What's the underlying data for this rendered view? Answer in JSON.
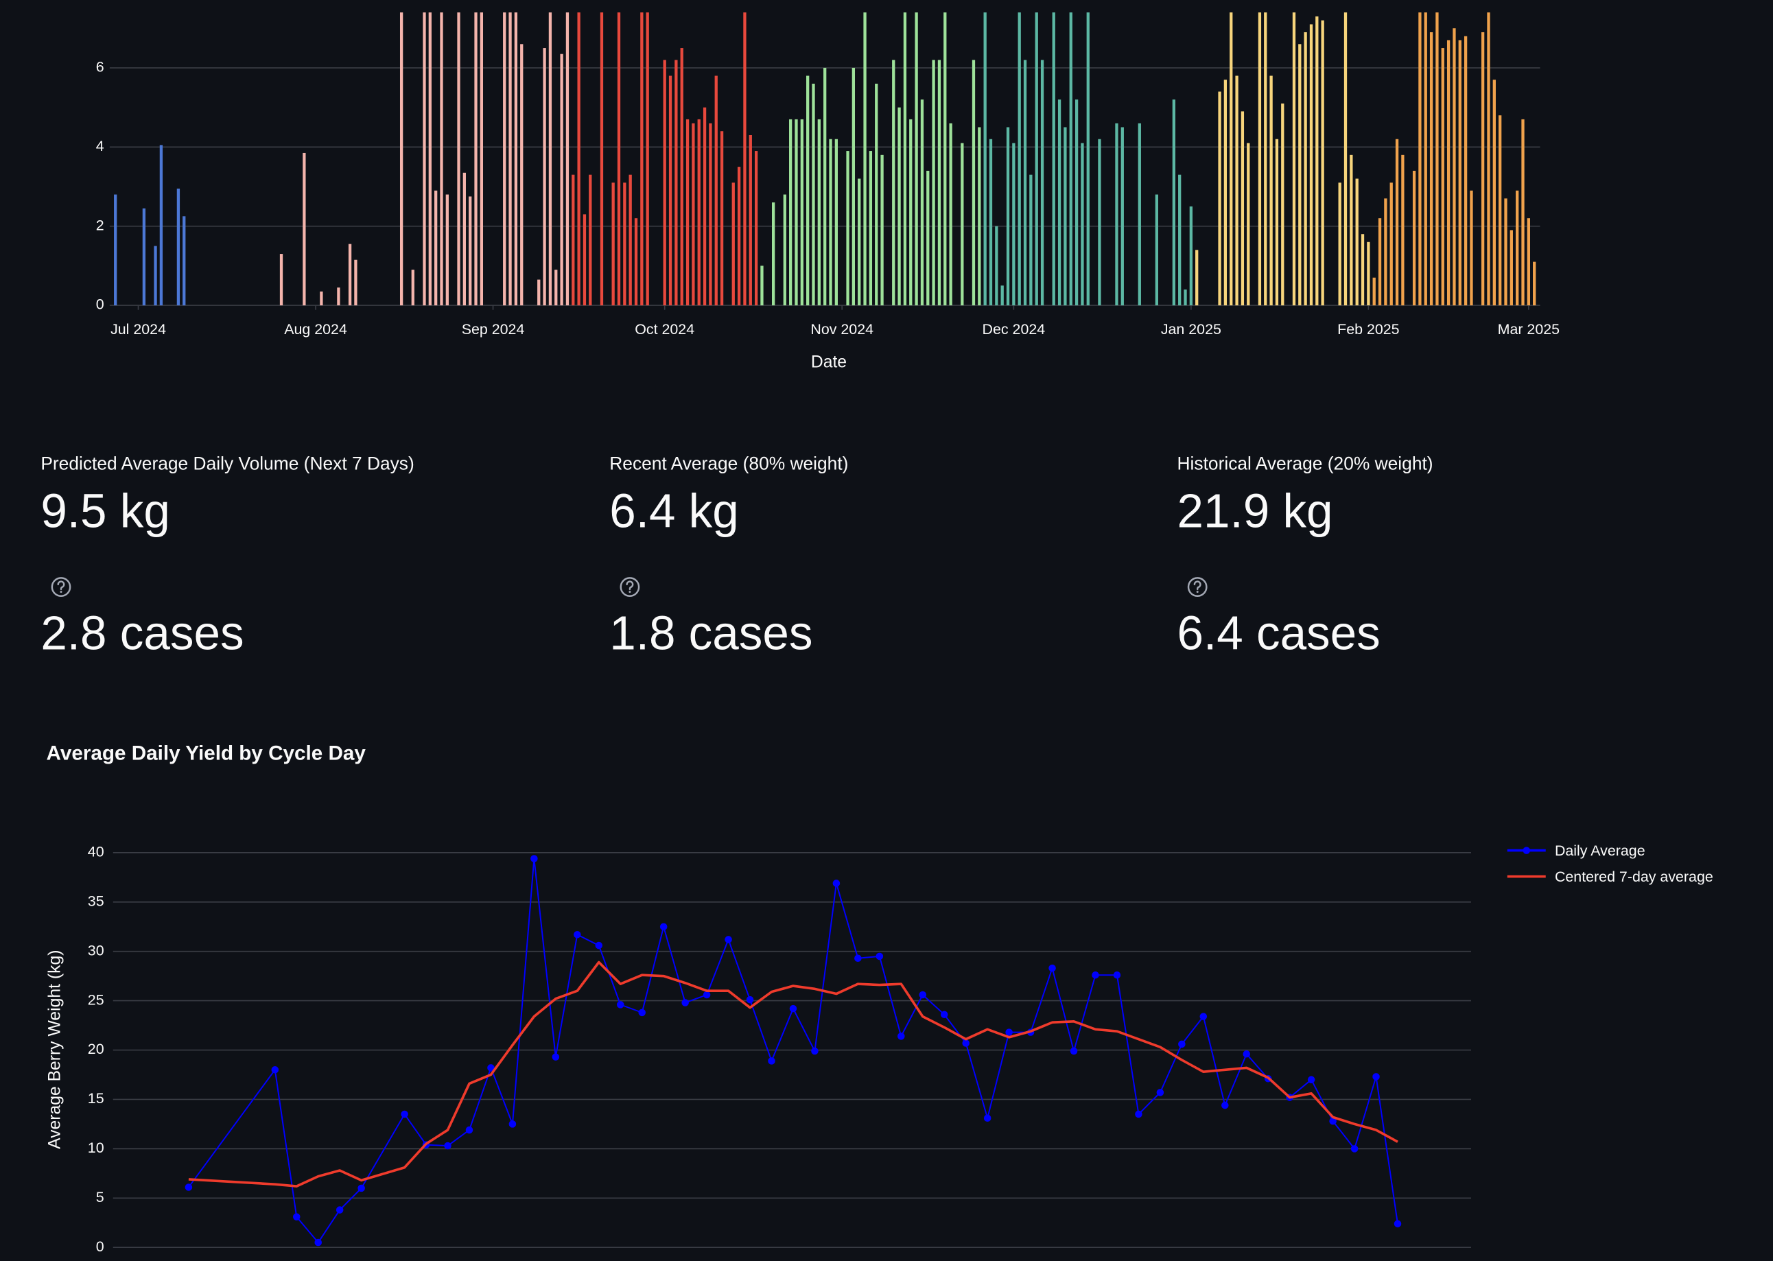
{
  "chart_data": [
    {
      "type": "bar",
      "x_label": "Date",
      "xlim": [
        "2024-06-26",
        "2025-03-03"
      ],
      "xticks": [
        {
          "value": "2024-07-01",
          "label": "Jul 2024"
        },
        {
          "value": "2024-08-01",
          "label": "Aug 2024"
        },
        {
          "value": "2024-09-01",
          "label": "Sep 2024"
        },
        {
          "value": "2024-10-01",
          "label": "Oct 2024"
        },
        {
          "value": "2024-11-01",
          "label": "Nov 2024"
        },
        {
          "value": "2024-12-01",
          "label": "Dec 2024"
        },
        {
          "value": "2025-01-01",
          "label": "Jan 2025"
        },
        {
          "value": "2025-02-01",
          "label": "Feb 2025"
        },
        {
          "value": "2025-03-01",
          "label": "Mar 2025"
        }
      ],
      "ylim": [
        0,
        7.4
      ],
      "yticks": [
        0,
        2,
        4,
        6
      ],
      "grid": true,
      "series": [
        {
          "color": "#4c78d6",
          "x": [
            "2024-06-27",
            "2024-07-02",
            "2024-07-04",
            "2024-07-05",
            "2024-07-08",
            "2024-07-09"
          ],
          "values": [
            2.8,
            2.45,
            1.5,
            4.05,
            2.95,
            2.25
          ]
        },
        {
          "color": "#f4b4ac",
          "x": [
            "2024-07-26",
            "2024-07-30",
            "2024-08-02",
            "2024-08-05",
            "2024-08-07",
            "2024-08-08",
            "2024-08-16",
            "2024-08-18",
            "2024-08-20",
            "2024-08-21",
            "2024-08-22",
            "2024-08-23",
            "2024-08-24",
            "2024-08-26",
            "2024-08-27",
            "2024-08-28",
            "2024-08-29",
            "2024-08-30",
            "2024-09-03",
            "2024-09-04",
            "2024-09-05",
            "2024-09-06",
            "2024-09-09",
            "2024-09-10",
            "2024-09-11",
            "2024-09-12",
            "2024-09-13",
            "2024-09-14"
          ],
          "values": [
            1.3,
            3.85,
            0.35,
            0.45,
            1.55,
            1.15,
            7.4,
            0.9,
            7.4,
            7.4,
            2.9,
            7.4,
            2.8,
            7.4,
            3.35,
            2.75,
            7.4,
            7.4,
            7.4,
            7.4,
            7.4,
            6.6,
            0.65,
            6.5,
            7.4,
            0.9,
            6.35,
            7.4
          ]
        },
        {
          "color": "#e8493d",
          "x": [
            "2024-09-15",
            "2024-09-16",
            "2024-09-17",
            "2024-09-18",
            "2024-09-20",
            "2024-09-22",
            "2024-09-23",
            "2024-09-24",
            "2024-09-25",
            "2024-09-26",
            "2024-09-27",
            "2024-09-28",
            "2024-10-01",
            "2024-10-02",
            "2024-10-03",
            "2024-10-04",
            "2024-10-05",
            "2024-10-06",
            "2024-10-07",
            "2024-10-08",
            "2024-10-09",
            "2024-10-10",
            "2024-10-11",
            "2024-10-13",
            "2024-10-14",
            "2024-10-15",
            "2024-10-16",
            "2024-10-17"
          ],
          "values": [
            3.3,
            7.4,
            2.3,
            3.3,
            7.4,
            3.1,
            7.4,
            3.1,
            3.3,
            2.2,
            7.4,
            7.4,
            6.2,
            5.8,
            6.2,
            6.5,
            4.7,
            4.6,
            4.7,
            5.0,
            4.6,
            5.8,
            4.4,
            3.1,
            3.5,
            7.4,
            4.3,
            3.9
          ]
        },
        {
          "color": "#9ee29a",
          "x": [
            "2024-10-18",
            "2024-10-20",
            "2024-10-22",
            "2024-10-23",
            "2024-10-24",
            "2024-10-25",
            "2024-10-26",
            "2024-10-27",
            "2024-10-28",
            "2024-10-29",
            "2024-10-30",
            "2024-10-31",
            "2024-11-02",
            "2024-11-03",
            "2024-11-04",
            "2024-11-05",
            "2024-11-06",
            "2024-11-07",
            "2024-11-08",
            "2024-11-10",
            "2024-11-11",
            "2024-11-12",
            "2024-11-13",
            "2024-11-14",
            "2024-11-15",
            "2024-11-16",
            "2024-11-17",
            "2024-11-18",
            "2024-11-19",
            "2024-11-20",
            "2024-11-22",
            "2024-11-24",
            "2024-11-25"
          ],
          "values": [
            1.0,
            2.6,
            2.8,
            4.7,
            4.7,
            4.7,
            5.8,
            5.6,
            4.7,
            6.0,
            4.2,
            4.2,
            3.9,
            6.0,
            3.2,
            7.4,
            3.9,
            5.6,
            3.8,
            6.2,
            5.0,
            7.4,
            4.7,
            7.4,
            5.2,
            3.4,
            6.2,
            6.2,
            7.4,
            4.6,
            4.1,
            6.2,
            4.5
          ]
        },
        {
          "color": "#5cb8a4",
          "x": [
            "2024-11-26",
            "2024-11-27",
            "2024-11-28",
            "2024-11-29",
            "2024-11-30",
            "2024-12-01",
            "2024-12-02",
            "2024-12-03",
            "2024-12-04",
            "2024-12-05",
            "2024-12-06",
            "2024-12-08",
            "2024-12-09",
            "2024-12-10",
            "2024-12-11",
            "2024-12-12",
            "2024-12-13",
            "2024-12-14",
            "2024-12-16",
            "2024-12-19",
            "2024-12-20",
            "2024-12-23",
            "2024-12-26",
            "2024-12-29",
            "2024-12-30",
            "2024-12-31",
            "2025-01-01"
          ],
          "values": [
            7.4,
            4.2,
            2.0,
            0.5,
            4.5,
            4.1,
            7.4,
            6.2,
            3.3,
            7.4,
            6.2,
            7.4,
            5.2,
            4.5,
            7.4,
            5.2,
            4.1,
            7.4,
            4.2,
            4.6,
            4.5,
            4.6,
            2.8,
            5.2,
            3.3,
            0.4,
            2.5
          ]
        },
        {
          "color": "#f7d57c",
          "x": [
            "2025-01-02",
            "2025-01-06",
            "2025-01-07",
            "2025-01-08",
            "2025-01-09",
            "2025-01-10",
            "2025-01-11",
            "2025-01-13",
            "2025-01-14",
            "2025-01-15",
            "2025-01-16",
            "2025-01-17",
            "2025-01-19",
            "2025-01-20",
            "2025-01-21",
            "2025-01-22",
            "2025-01-23",
            "2025-01-24",
            "2025-01-27",
            "2025-01-28",
            "2025-01-29",
            "2025-01-30",
            "2025-01-31",
            "2025-02-01"
          ],
          "values": [
            1.4,
            5.4,
            5.7,
            7.4,
            5.8,
            4.9,
            4.1,
            7.4,
            7.4,
            5.8,
            4.2,
            5.1,
            7.4,
            6.6,
            6.9,
            7.1,
            7.3,
            7.2,
            3.1,
            7.4,
            3.8,
            3.2,
            1.8,
            1.6
          ]
        },
        {
          "color": "#f0a24c",
          "x": [
            "2025-02-02",
            "2025-02-03",
            "2025-02-04",
            "2025-02-05",
            "2025-02-06",
            "2025-02-07",
            "2025-02-09",
            "2025-02-10",
            "2025-02-11",
            "2025-02-12",
            "2025-02-13",
            "2025-02-14",
            "2025-02-15",
            "2025-02-16",
            "2025-02-17",
            "2025-02-18",
            "2025-02-19",
            "2025-02-21",
            "2025-02-22",
            "2025-02-23",
            "2025-02-24",
            "2025-02-25",
            "2025-02-26",
            "2025-02-27",
            "2025-02-28",
            "2025-03-01",
            "2025-03-02"
          ],
          "values": [
            0.7,
            2.2,
            2.7,
            3.1,
            4.2,
            3.8,
            3.4,
            7.4,
            7.4,
            6.9,
            7.4,
            6.5,
            6.7,
            7.0,
            6.7,
            6.8,
            2.9,
            6.9,
            7.4,
            5.7,
            4.8,
            2.7,
            1.9,
            2.9,
            4.7,
            2.2,
            1.1
          ]
        }
      ]
    },
    {
      "type": "line",
      "title": "Average Daily Yield by Cycle Day",
      "y_label": "Average Berry Weight (kg)",
      "x": [
        1,
        5,
        6,
        7,
        8,
        9,
        11,
        12,
        13,
        14,
        15,
        16,
        17,
        18,
        19,
        20,
        21,
        22,
        23,
        24,
        25,
        26,
        27,
        28,
        29,
        30,
        31,
        32,
        33,
        34,
        35,
        36,
        37,
        38,
        39,
        40,
        41,
        42,
        43,
        44,
        45,
        46,
        47,
        48,
        49,
        50,
        51,
        52,
        53,
        54,
        55,
        56,
        57
      ],
      "xlim": [
        -2.5,
        60.4
      ],
      "ylim": [
        0,
        42
      ],
      "yticks": [
        0,
        5,
        10,
        15,
        20,
        25,
        30,
        35,
        40
      ],
      "grid": true,
      "legend": "top-right",
      "series": [
        {
          "name": "Daily Average",
          "color": "#0000ff",
          "markers": true,
          "values": [
            6.1,
            18.0,
            3.1,
            0.5,
            3.8,
            6.0,
            13.5,
            10.4,
            10.3,
            11.9,
            18.2,
            12.5,
            39.4,
            19.3,
            31.7,
            30.6,
            24.6,
            23.8,
            32.5,
            24.8,
            25.6,
            31.2,
            25.1,
            18.9,
            24.2,
            19.9,
            36.9,
            29.3,
            29.5,
            21.4,
            25.6,
            23.6,
            20.7,
            13.1,
            21.8,
            21.8,
            28.3,
            19.9,
            27.6,
            27.6,
            13.5,
            15.7,
            20.6,
            23.4,
            14.4,
            19.6,
            17.1,
            15.2,
            17.0,
            12.8,
            10.0,
            17.3,
            2.4
          ]
        },
        {
          "name": "Centered 7-day average",
          "color": "#ef3b2c",
          "markers": false,
          "values": [
            6.9,
            6.4,
            6.2,
            7.2,
            7.8,
            6.8,
            8.1,
            10.5,
            11.9,
            16.6,
            17.5,
            20.5,
            23.4,
            25.2,
            26.0,
            28.9,
            26.7,
            27.6,
            27.5,
            26.8,
            26.0,
            26.0,
            24.3,
            25.9,
            26.5,
            26.2,
            25.7,
            26.7,
            26.6,
            26.7,
            23.4,
            22.3,
            21.1,
            22.1,
            21.3,
            21.9,
            22.8,
            22.9,
            22.1,
            21.9,
            21.1,
            20.3,
            19.0,
            17.8,
            18.0,
            18.2,
            17.2,
            15.2,
            15.6,
            13.2,
            12.5,
            11.9,
            10.7
          ]
        }
      ]
    }
  ],
  "metrics": [
    {
      "label": "Predicted Average Daily Volume (Next 7 Days)",
      "value": "9.5 kg",
      "cases": "2.8 cases"
    },
    {
      "label": "Recent Average (80% weight)",
      "value": "6.4 kg",
      "cases": "1.8 cases"
    },
    {
      "label": "Historical Average (20% weight)",
      "value": "21.9 kg",
      "cases": "6.4 cases"
    }
  ]
}
